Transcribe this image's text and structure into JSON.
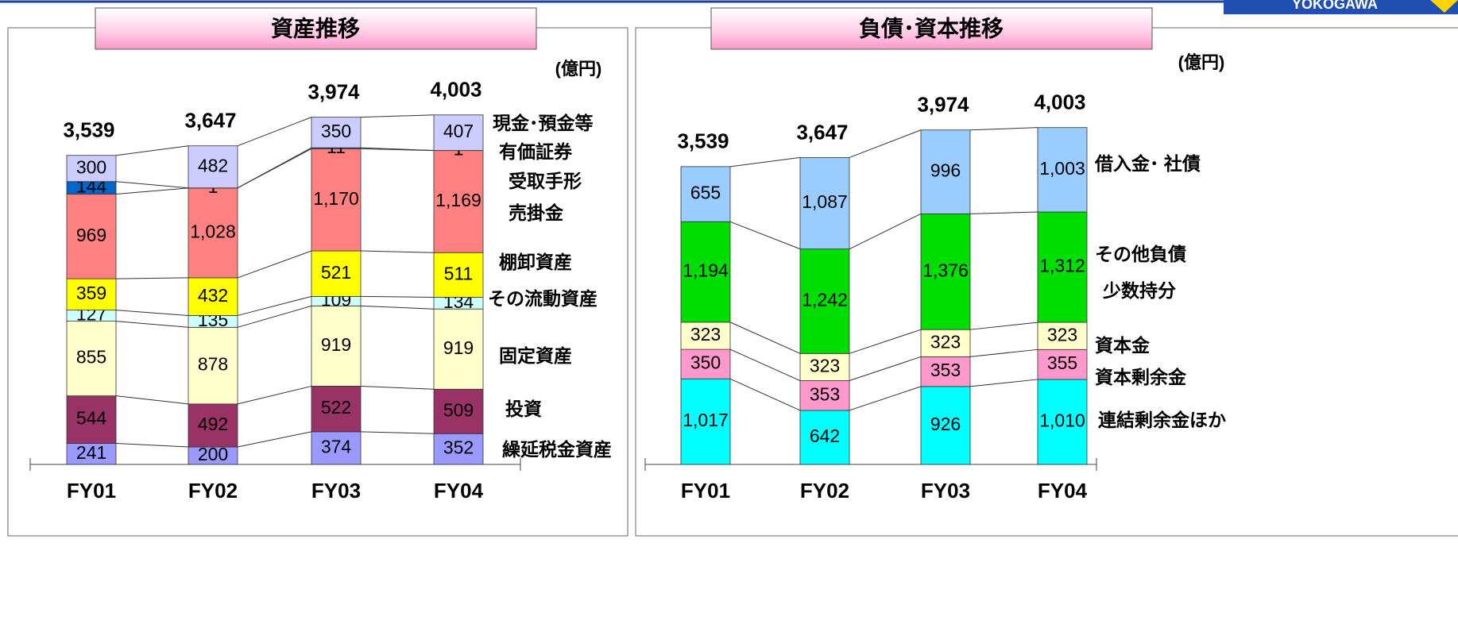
{
  "header": {
    "logo": "YOKOGAWA"
  },
  "chart_data": [
    {
      "type": "stacked-bar",
      "title": "資産推移",
      "unit": "(億円)",
      "categories": [
        "FY01",
        "FY02",
        "FY03",
        "FY04"
      ],
      "totals": [
        3539,
        3647,
        3974,
        4003
      ],
      "total_labels": [
        "3,539",
        "3,647",
        "3,974",
        "4,003"
      ],
      "series": [
        {
          "name": "繰延税金資産",
          "color": "#9999ff",
          "values": [
            241,
            200,
            374,
            352
          ]
        },
        {
          "name": "投資",
          "color": "#993366",
          "values": [
            544,
            492,
            522,
            509
          ]
        },
        {
          "name": "固定資産",
          "color": "#ffffcc",
          "values": [
            855,
            878,
            919,
            919
          ]
        },
        {
          "name": "その流動資産",
          "color": "#ccffff",
          "values": [
            127,
            135,
            109,
            134
          ]
        },
        {
          "name": "棚卸資産",
          "color": "#ffff00",
          "values": [
            359,
            432,
            521,
            511
          ]
        },
        {
          "name": "受取手形\n売掛金",
          "color": "#ff8080",
          "values": [
            969,
            1028,
            1170,
            1169
          ],
          "value_labels": [
            "969",
            "1,028",
            "1,170",
            "1,169"
          ]
        },
        {
          "name": "有価証券",
          "color": "#0066cc",
          "values": [
            144,
            1,
            11,
            1
          ]
        },
        {
          "name": "現金･預金等",
          "color": "#ccccff",
          "values": [
            300,
            482,
            350,
            407
          ]
        }
      ]
    },
    {
      "type": "stacked-bar",
      "title": "負債･資本推移",
      "unit": "(億円)",
      "categories": [
        "FY01",
        "FY02",
        "FY03",
        "FY04"
      ],
      "totals": [
        3539,
        3647,
        3974,
        4003
      ],
      "total_labels": [
        "3,539",
        "3,647",
        "3,974",
        "4,003"
      ],
      "annotations": [
        "少数持分"
      ],
      "series": [
        {
          "name": "連結剰余金ほか",
          "color": "#00ffff",
          "values": [
            1017,
            642,
            926,
            1010
          ],
          "value_labels": [
            "1,017",
            "642",
            "926",
            "1,010"
          ]
        },
        {
          "name": "資本剰余金",
          "color": "#ff99cc",
          "values": [
            350,
            353,
            353,
            355
          ]
        },
        {
          "name": "資本金",
          "color": "#ffffcc",
          "values": [
            323,
            323,
            323,
            323
          ]
        },
        {
          "name": "その他負債",
          "color": "#00dd00",
          "values": [
            1194,
            1242,
            1376,
            1312
          ],
          "value_labels": [
            "1,194",
            "1,242",
            "1,376",
            "1,312"
          ]
        },
        {
          "name": "借入金･ 社債",
          "color": "#99ccff",
          "values": [
            655,
            1087,
            996,
            1003
          ],
          "value_labels": [
            "655",
            "1,087",
            "996",
            "1,003"
          ]
        }
      ]
    }
  ]
}
